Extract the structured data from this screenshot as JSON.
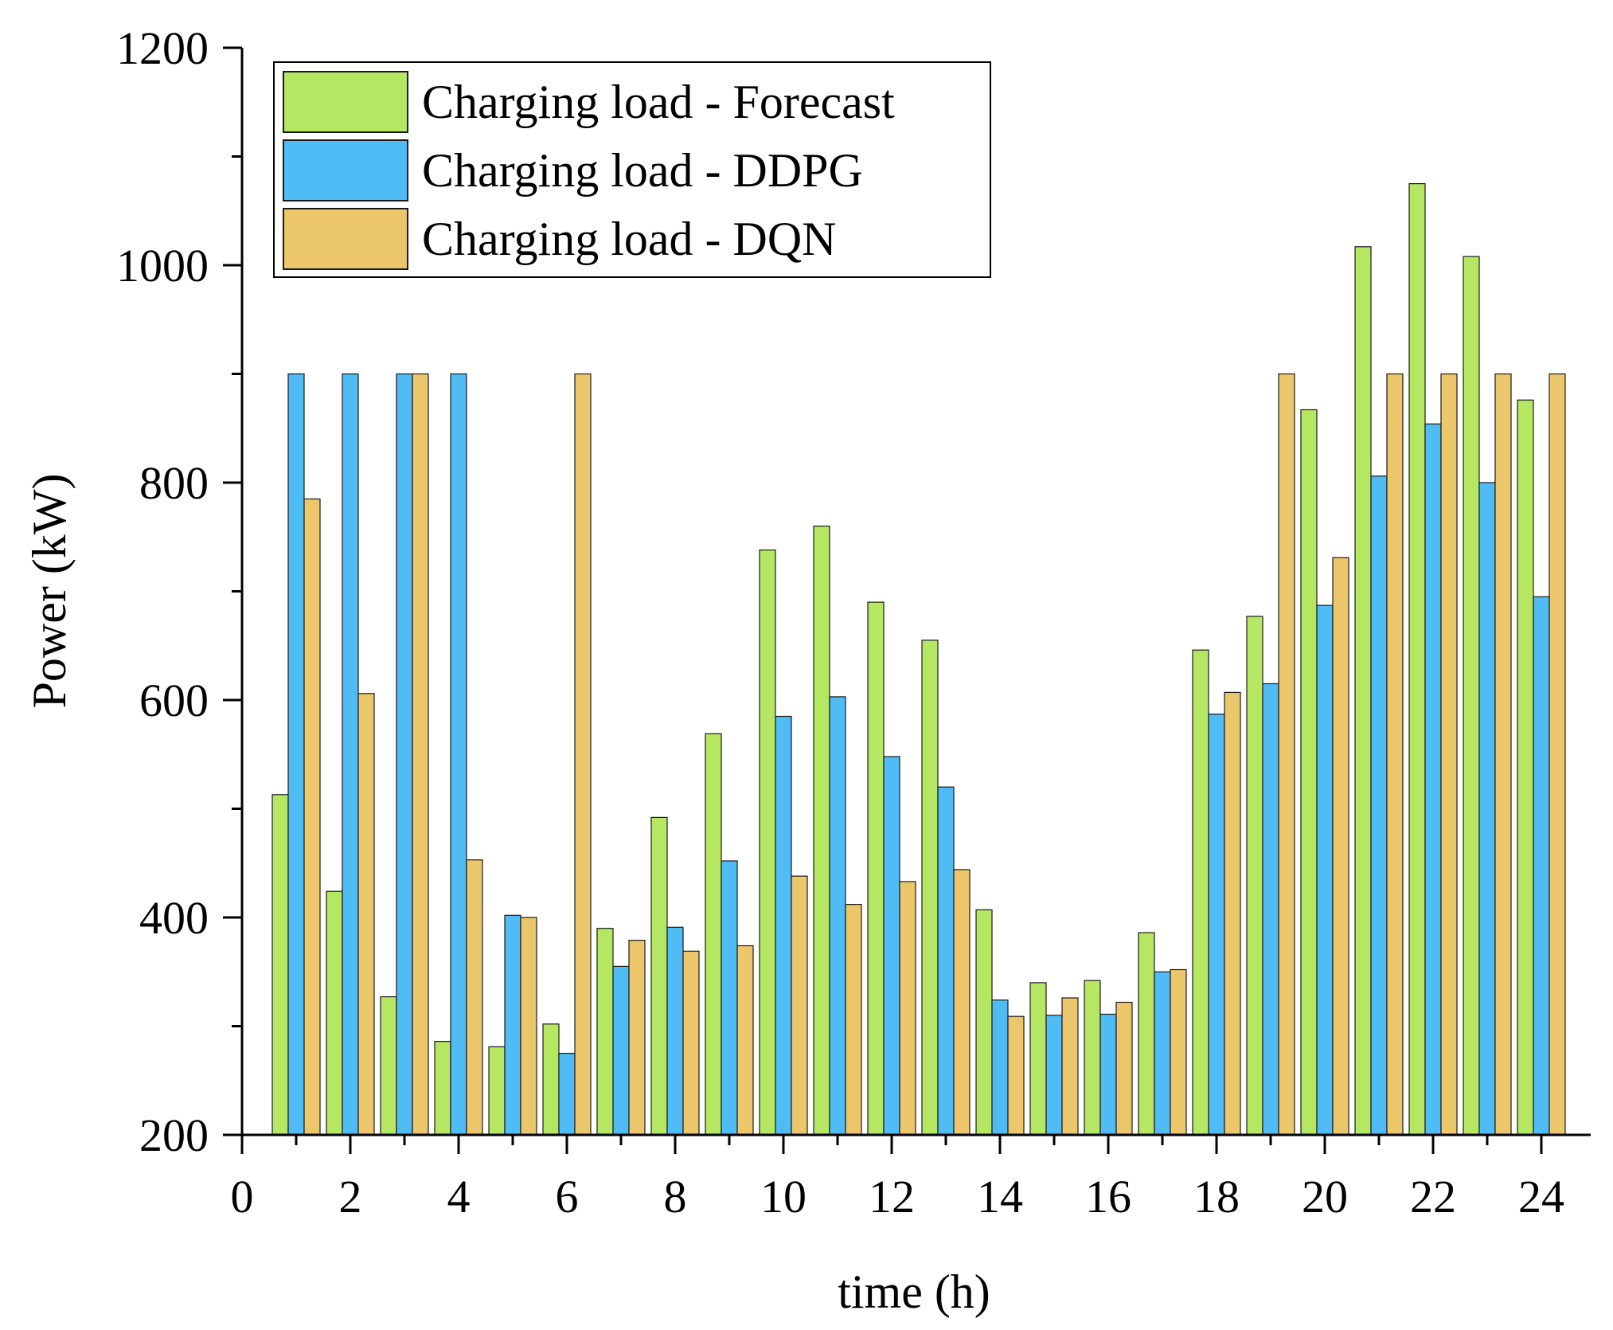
{
  "chart_data": {
    "type": "bar",
    "title": "",
    "xlabel": "time (h)",
    "ylabel": "Power (kW)",
    "xlim": [
      0,
      25
    ],
    "ylim": [
      200,
      1200
    ],
    "xticks": [
      "0",
      "2",
      "4",
      "6",
      "8",
      "10",
      "12",
      "14",
      "16",
      "18",
      "20",
      "22",
      "24"
    ],
    "yticks": [
      "200",
      "400",
      "600",
      "800",
      "1000",
      "1200"
    ],
    "legend_position": "top-left",
    "categories": [
      1,
      2,
      3,
      4,
      5,
      6,
      7,
      8,
      9,
      10,
      11,
      12,
      13,
      14,
      15,
      16,
      17,
      18,
      19,
      20,
      21,
      22,
      23,
      24
    ],
    "series": [
      {
        "name": "Charging load - Forecast",
        "color": "#b5e762",
        "values": [
          513,
          424,
          327,
          286,
          281,
          302,
          390,
          492,
          569,
          738,
          760,
          690,
          655,
          407,
          340,
          342,
          386,
          646,
          677,
          867,
          1017,
          1075,
          1008,
          876
        ]
      },
      {
        "name": "Charging load - DDPG",
        "color": "#4fbcf5",
        "values": [
          900,
          900,
          900,
          900,
          402,
          275,
          355,
          391,
          452,
          585,
          603,
          548,
          520,
          324,
          310,
          311,
          350,
          587,
          615,
          687,
          806,
          854,
          800,
          695
        ]
      },
      {
        "name": "Charging load - DQN",
        "color": "#ecc66a",
        "values": [
          785,
          606,
          900,
          453,
          400,
          900,
          379,
          369,
          374,
          438,
          412,
          433,
          444,
          309,
          326,
          322,
          352,
          607,
          900,
          731,
          900,
          900,
          900,
          900
        ]
      }
    ]
  }
}
